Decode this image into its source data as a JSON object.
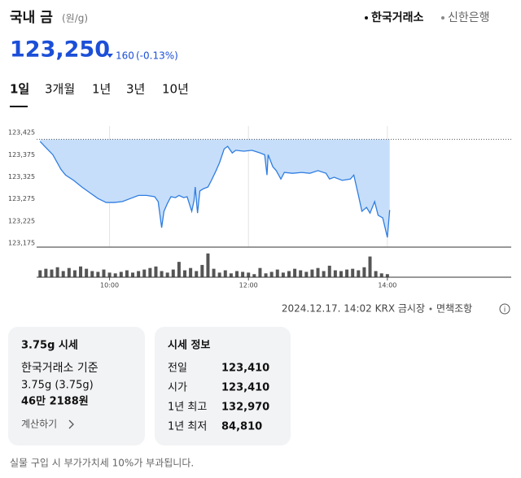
{
  "header": {
    "title": "국내 금",
    "unit": "(원/g)",
    "sources": [
      "한국거래소",
      "신한은행"
    ],
    "price": "123,250",
    "change": "160",
    "change_pct": "(-0.13%)"
  },
  "tabs": [
    "1일",
    "3개월",
    "1년",
    "3년",
    "10년"
  ],
  "chart_data": {
    "type": "line",
    "x": [
      540,
      544,
      551,
      558,
      562,
      569,
      576,
      583,
      590,
      597,
      604,
      611,
      618,
      625,
      632,
      639,
      642,
      645,
      647,
      650,
      653,
      657,
      660,
      664,
      667,
      671,
      673,
      674,
      676,
      678,
      681,
      685,
      688,
      692,
      695,
      699,
      702,
      706,
      709,
      716,
      723,
      730,
      734,
      736,
      737,
      741,
      744,
      748,
      751,
      758,
      766,
      773,
      780,
      787,
      790,
      794,
      801,
      808,
      811,
      815,
      818,
      822,
      825,
      829,
      832,
      836,
      838,
      840,
      842
    ],
    "values": [
      123405,
      123394,
      123375,
      123342,
      123329,
      123317,
      123302,
      123289,
      123276,
      123267,
      123267,
      123269,
      123276,
      123283,
      123283,
      123280,
      123269,
      123210,
      123247,
      123265,
      123280,
      123278,
      123283,
      123278,
      123280,
      123247,
      123272,
      123302,
      123243,
      123293,
      123298,
      123302,
      123317,
      123339,
      123357,
      123388,
      123394,
      123379,
      123385,
      123383,
      123385,
      123379,
      123375,
      123329,
      123375,
      123348,
      123339,
      123320,
      123335,
      123333,
      123335,
      123333,
      123339,
      123333,
      123320,
      123324,
      123317,
      123320,
      123329,
      123283,
      123247,
      123256,
      123243,
      123269,
      123238,
      123232,
      123210,
      123188,
      123250
    ],
    "color": "#2f7de1",
    "fill": "#c6def9",
    "reference": 123410,
    "xlim": [
      537,
      947
    ],
    "xticks": [
      {
        "value": 600,
        "label": "10:00"
      },
      {
        "value": 720,
        "label": "12:00"
      },
      {
        "value": 840,
        "label": "14:00"
      }
    ],
    "ylim": [
      123166,
      123440
    ],
    "yticks": [
      {
        "value": 123425,
        "label": "123,425"
      },
      {
        "value": 123375,
        "label": "123,375"
      },
      {
        "value": 123325,
        "label": "123,325"
      },
      {
        "value": 123275,
        "label": "123,275"
      },
      {
        "value": 123225,
        "label": "123,225"
      },
      {
        "value": 123175,
        "label": "123,175"
      }
    ],
    "volume": {
      "color": "#555555",
      "vlim": [
        0,
        35
      ],
      "x": [
        540,
        545,
        550,
        555,
        560,
        565,
        570,
        575,
        580,
        585,
        590,
        595,
        600,
        605,
        610,
        615,
        620,
        625,
        630,
        635,
        640,
        645,
        650,
        655,
        660,
        665,
        670,
        675,
        680,
        685,
        690,
        695,
        700,
        705,
        710,
        715,
        720,
        725,
        730,
        735,
        740,
        745,
        750,
        755,
        760,
        765,
        770,
        775,
        780,
        785,
        790,
        795,
        800,
        805,
        810,
        815,
        820,
        825,
        830,
        835,
        840
      ],
      "values": [
        9,
        11,
        10,
        13,
        8,
        12,
        9,
        14,
        11,
        8,
        7,
        10,
        6,
        5,
        7,
        9,
        6,
        8,
        10,
        12,
        14,
        8,
        6,
        10,
        20,
        9,
        12,
        8,
        16,
        31,
        11,
        6,
        9,
        5,
        8,
        7,
        6,
        4,
        12,
        5,
        7,
        10,
        6,
        8,
        11,
        9,
        7,
        10,
        12,
        8,
        15,
        9,
        8,
        10,
        11,
        9,
        13,
        27,
        8,
        5,
        4
      ]
    }
  },
  "timestamp": "2024.12.17. 14:02 KRX 금시장",
  "disclaimer": "면책조항",
  "cards": [
    {
      "title": "3.75g 시세",
      "lines": [
        "한국거래소 기준",
        "3.75g (3.75g)",
        "46만 2188원"
      ],
      "link": "계산하기"
    },
    {
      "title": "시세 정보",
      "rows": [
        {
          "label": "전일",
          "value": "123,410"
        },
        {
          "label": "시가",
          "value": "123,410"
        },
        {
          "label": "1년 최고",
          "value": "132,970"
        },
        {
          "label": "1년 최저",
          "value": "84,810"
        }
      ]
    }
  ],
  "footer": "실물 구입 시 부가가치세 10%가 부과됩니다."
}
